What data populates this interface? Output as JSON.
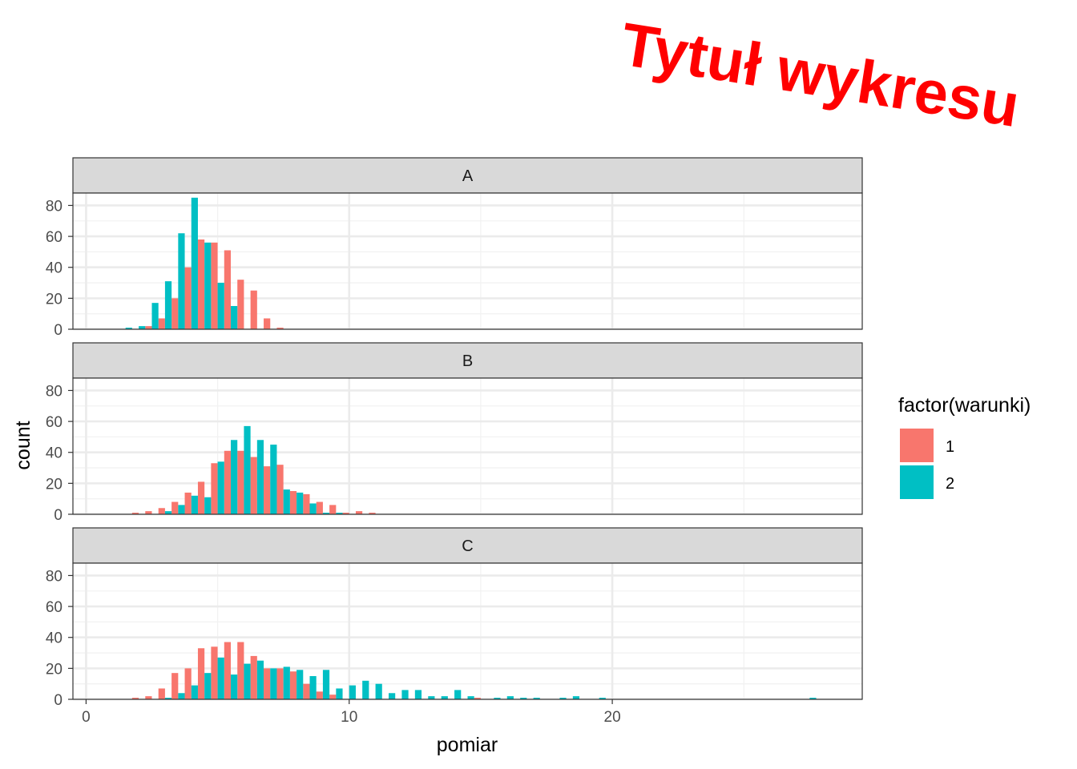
{
  "chart_data": {
    "type": "bar",
    "title": "Tytuł wykresu",
    "title_color": "#ff0000",
    "xlabel": "pomiar",
    "ylabel": "count",
    "xlim": [
      -0.5,
      29.5
    ],
    "ylim": [
      0,
      88
    ],
    "x_ticks": [
      0,
      10,
      20
    ],
    "y_ticks": [
      0,
      20,
      40,
      60,
      80
    ],
    "grid": true,
    "legend_position": "right",
    "legend": {
      "title": "factor(warunki)",
      "entries": [
        {
          "label": "1",
          "color": "#F8766D"
        },
        {
          "label": "2",
          "color": "#00BFC4"
        }
      ]
    },
    "bin_width": 0.5,
    "bin_centers": [
      1.5,
      2.0,
      2.5,
      3.0,
      3.5,
      4.0,
      4.5,
      5.0,
      5.5,
      6.0,
      6.5,
      7.0,
      7.5,
      8.0,
      8.5,
      9.0,
      9.5,
      10.0,
      10.5,
      11.0,
      11.5,
      12.0,
      12.5,
      13.0,
      13.5,
      14.0,
      14.5,
      15.0,
      15.5,
      16.0,
      16.5,
      17.0,
      17.5,
      18.0,
      18.5,
      19.0,
      19.5,
      20.0,
      20.5,
      21.0,
      21.5,
      22.0,
      22.5,
      23.0,
      23.5,
      24.0,
      24.5,
      25.0,
      25.5,
      26.0,
      26.5,
      27.0,
      27.5
    ],
    "facets": [
      {
        "label": "A",
        "series": [
          {
            "name": "1",
            "values": [
              0,
              0,
              2,
              7,
              20,
              40,
              58,
              56,
              51,
              32,
              25,
              7,
              1,
              0,
              0,
              0,
              0,
              0,
              0,
              0,
              0,
              0,
              0,
              0,
              0,
              0,
              0,
              0,
              0,
              0,
              0,
              0,
              0,
              0,
              0,
              0,
              0,
              0,
              0,
              0,
              0,
              0,
              0,
              0,
              0,
              0,
              0,
              0,
              0,
              0,
              0,
              0,
              0
            ]
          },
          {
            "name": "2",
            "values": [
              1,
              2,
              17,
              31,
              62,
              85,
              56,
              30,
              15,
              0,
              0,
              0,
              0,
              0,
              0,
              0,
              0,
              0,
              0,
              0,
              0,
              0,
              0,
              0,
              0,
              0,
              0,
              0,
              0,
              0,
              0,
              0,
              0,
              0,
              0,
              0,
              0,
              0,
              0,
              0,
              0,
              0,
              0,
              0,
              0,
              0,
              0,
              0,
              0,
              0,
              0,
              0,
              0
            ]
          }
        ]
      },
      {
        "label": "B",
        "series": [
          {
            "name": "1",
            "values": [
              0,
              1,
              2,
              4,
              8,
              14,
              21,
              33,
              41,
              41,
              37,
              31,
              32,
              15,
              13,
              8,
              6,
              1,
              2,
              1,
              0,
              0,
              0,
              0,
              0,
              0,
              0,
              0,
              0,
              0,
              0,
              0,
              0,
              0,
              0,
              0,
              0,
              0,
              0,
              0,
              0,
              0,
              0,
              0,
              0,
              0,
              0,
              0,
              0,
              0,
              0,
              0,
              0
            ]
          },
          {
            "name": "2",
            "values": [
              0,
              0,
              0,
              2,
              6,
              12,
              11,
              34,
              48,
              57,
              48,
              45,
              16,
              14,
              7,
              1,
              1,
              0,
              0,
              0,
              0,
              0,
              0,
              0,
              0,
              0,
              0,
              0,
              0,
              0,
              0,
              0,
              0,
              0,
              0,
              0,
              0,
              0,
              0,
              0,
              0,
              0,
              0,
              0,
              0,
              0,
              0,
              0,
              0,
              0,
              0,
              0,
              0
            ]
          }
        ]
      },
      {
        "label": "C",
        "series": [
          {
            "name": "1",
            "values": [
              0,
              1,
              2,
              7,
              17,
              20,
              33,
              34,
              37,
              37,
              28,
              20,
              20,
              18,
              10,
              5,
              3,
              0,
              0,
              0,
              0,
              0,
              0,
              0,
              0,
              0,
              0,
              1,
              0,
              0,
              0,
              0,
              0,
              0,
              0,
              0,
              0,
              0,
              0,
              0,
              0,
              0,
              0,
              0,
              0,
              0,
              0,
              0,
              0,
              0,
              0,
              0,
              0
            ]
          },
          {
            "name": "2",
            "values": [
              0,
              0,
              0,
              1,
              4,
              9,
              17,
              27,
              16,
              23,
              25,
              20,
              21,
              19,
              15,
              19,
              7,
              9,
              12,
              10,
              4,
              6,
              6,
              2,
              2,
              6,
              2,
              0,
              1,
              2,
              1,
              1,
              0,
              1,
              2,
              0,
              1,
              0,
              0,
              0,
              0,
              0,
              0,
              0,
              0,
              0,
              0,
              0,
              0,
              0,
              0,
              0,
              1
            ]
          }
        ]
      }
    ]
  }
}
